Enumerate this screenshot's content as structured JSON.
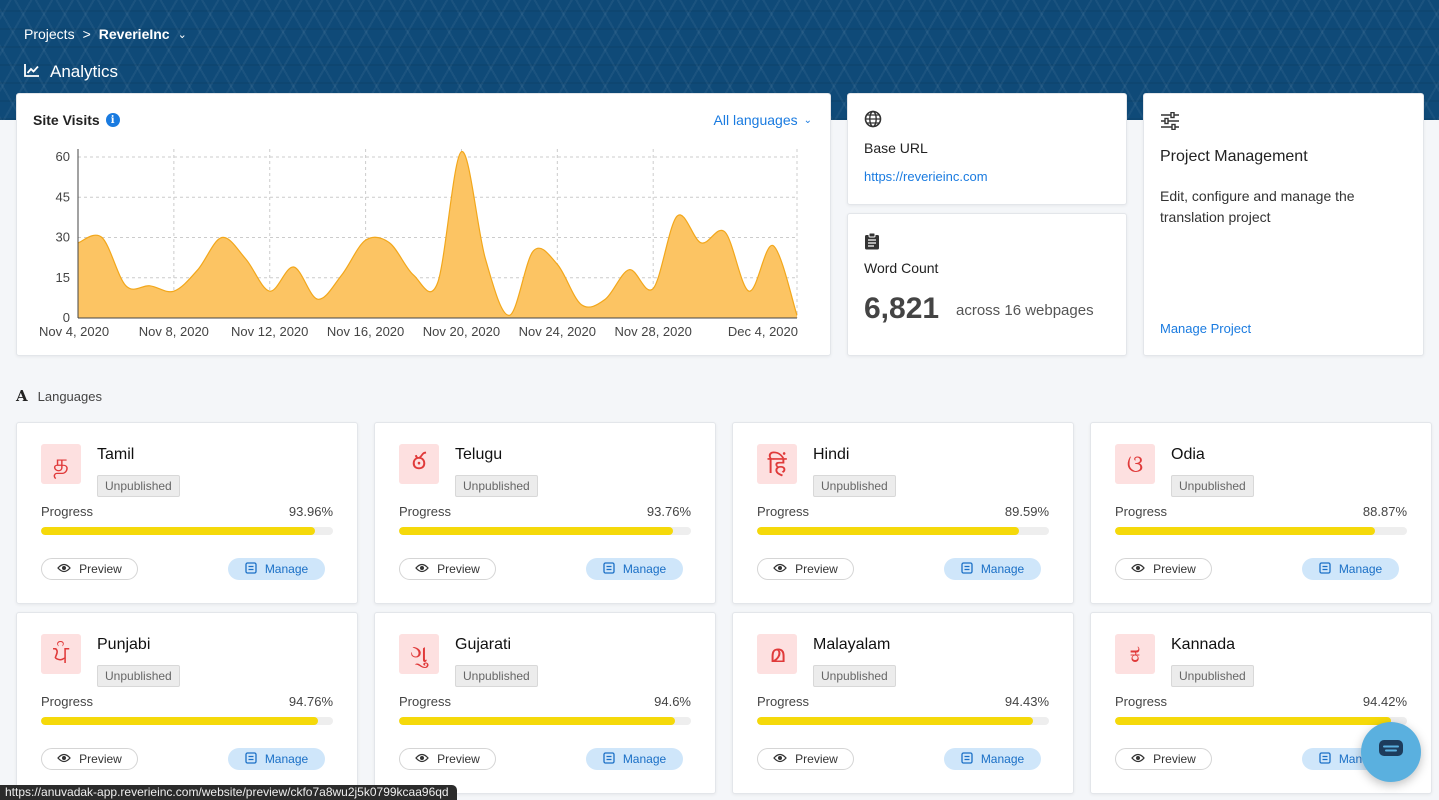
{
  "breadcrumb": {
    "projects": "Projects",
    "separator": ">",
    "current": "ReverieInc"
  },
  "page": {
    "title": "Analytics",
    "icon": "line-chart-icon"
  },
  "site_visits": {
    "title": "Site Visits",
    "language_filter": "All languages"
  },
  "chart_data": {
    "type": "area",
    "title": "Site Visits",
    "x": [
      "Nov 4, 2020",
      "Nov 5, 2020",
      "Nov 6, 2020",
      "Nov 7, 2020",
      "Nov 8, 2020",
      "Nov 9, 2020",
      "Nov 10, 2020",
      "Nov 11, 2020",
      "Nov 12, 2020",
      "Nov 13, 2020",
      "Nov 14, 2020",
      "Nov 15, 2020",
      "Nov 16, 2020",
      "Nov 17, 2020",
      "Nov 18, 2020",
      "Nov 19, 2020",
      "Nov 20, 2020",
      "Nov 21, 2020",
      "Nov 22, 2020",
      "Nov 23, 2020",
      "Nov 24, 2020",
      "Nov 25, 2020",
      "Nov 26, 2020",
      "Nov 27, 2020",
      "Nov 28, 2020",
      "Nov 29, 2020",
      "Nov 30, 2020",
      "Dec 1, 2020",
      "Dec 2, 2020",
      "Dec 3, 2020",
      "Dec 4, 2020"
    ],
    "values": [
      28,
      30,
      12,
      12,
      10,
      18,
      30,
      22,
      10,
      19,
      7,
      16,
      29,
      28,
      16,
      13,
      62,
      22,
      1,
      25,
      20,
      5,
      7,
      18,
      11,
      38,
      28,
      32,
      10,
      27,
      1
    ],
    "x_tick_labels": [
      "Nov 4, 2020",
      "Nov 8, 2020",
      "Nov 12, 2020",
      "Nov 16, 2020",
      "Nov 20, 2020",
      "Nov 24, 2020",
      "Nov 28, 2020",
      "Dec 4, 2020"
    ],
    "yticks": [
      0,
      15,
      30,
      45,
      60
    ],
    "ylim": [
      0,
      60
    ],
    "grid": true,
    "color": "#fcc463"
  },
  "base_url": {
    "label": "Base URL",
    "url": "https://reverieinc.com",
    "icon": "globe-icon"
  },
  "word_count": {
    "label": "Word Count",
    "value": "6,821",
    "sub": "across 16 webpages",
    "icon": "clipboard-icon"
  },
  "project_management": {
    "title": "Project Management",
    "description": "Edit, configure and manage the translation project",
    "link": "Manage Project",
    "icon": "sliders-icon"
  },
  "languages_section": {
    "title": "Languages"
  },
  "languages": [
    {
      "name": "Tamil",
      "glyph": "த",
      "status": "Unpublished",
      "progress_label": "Progress",
      "progress": "93.96%",
      "fraction": 0.9396,
      "preview": "Preview",
      "manage": "Manage"
    },
    {
      "name": "Telugu",
      "glyph": "ఠ",
      "status": "Unpublished",
      "progress_label": "Progress",
      "progress": "93.76%",
      "fraction": 0.9376,
      "preview": "Preview",
      "manage": "Manage"
    },
    {
      "name": "Hindi",
      "glyph": "हिं",
      "status": "Unpublished",
      "progress_label": "Progress",
      "progress": "89.59%",
      "fraction": 0.8959,
      "preview": "Preview",
      "manage": "Manage"
    },
    {
      "name": "Odia",
      "glyph": "ଓ",
      "status": "Unpublished",
      "progress_label": "Progress",
      "progress": "88.87%",
      "fraction": 0.8887,
      "preview": "Preview",
      "manage": "Manage"
    },
    {
      "name": "Punjabi",
      "glyph": "ਪੰ",
      "status": "Unpublished",
      "progress_label": "Progress",
      "progress": "94.76%",
      "fraction": 0.9476,
      "preview": "Preview",
      "manage": "Manage"
    },
    {
      "name": "Gujarati",
      "glyph": "ગુ",
      "status": "Unpublished",
      "progress_label": "Progress",
      "progress": "94.6%",
      "fraction": 0.946,
      "preview": "Preview",
      "manage": "Manage"
    },
    {
      "name": "Malayalam",
      "glyph": "മ",
      "status": "Unpublished",
      "progress_label": "Progress",
      "progress": "94.43%",
      "fraction": 0.9443,
      "preview": "Preview",
      "manage": "Manage"
    },
    {
      "name": "Kannada",
      "glyph": "ಕ",
      "status": "Unpublished",
      "progress_label": "Progress",
      "progress": "94.42%",
      "fraction": 0.9442,
      "preview": "Preview",
      "manage": "Manage"
    }
  ],
  "status_bar": {
    "url": "https://anuvadak-app.reverieinc.com/website/preview/ckfo7a8wu2j5k0799kcaa96qd"
  },
  "chat_widget": {
    "icon": "chat-icon"
  }
}
